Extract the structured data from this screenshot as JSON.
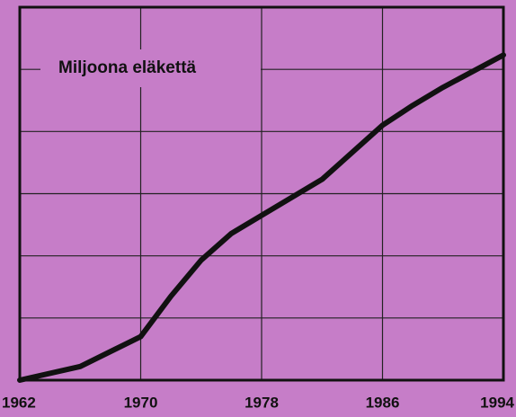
{
  "chart_data": {
    "type": "line",
    "title": "Miljoona eläkettä",
    "x": [
      1962,
      1966,
      1970,
      1972,
      1974,
      1976,
      1978,
      1982,
      1986,
      1988,
      1990,
      1994
    ],
    "series": [
      {
        "color": "#111111",
        "values": [
          0,
          0.22,
          0.7,
          1.35,
          1.93,
          2.36,
          2.65,
          3.23,
          4.1,
          4.42,
          4.71,
          5.23
        ]
      }
    ],
    "xlim": [
      1962,
      1994
    ],
    "xticks": [
      1962,
      1970,
      1978,
      1986,
      1994
    ],
    "ylim": [
      0,
      6
    ],
    "yticks": [
      0,
      1,
      2,
      3,
      4,
      5,
      6
    ],
    "grid": true
  }
}
